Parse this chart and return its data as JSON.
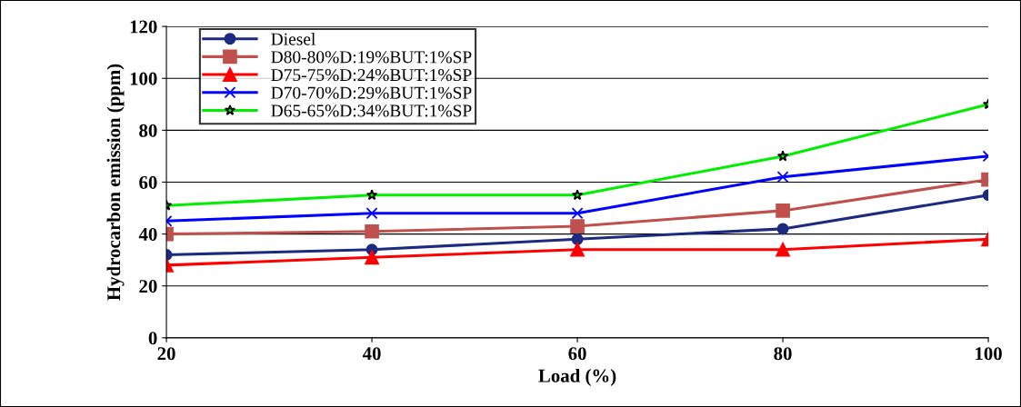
{
  "chart_data": {
    "type": "line",
    "xlabel": "Load (%)",
    "ylabel": "Hydrocarbon emission (ppm)",
    "x": [
      20,
      40,
      60,
      80,
      100
    ],
    "series": [
      {
        "name": "Diesel",
        "color": "#1c2a80",
        "marker": "circle",
        "values": [
          32,
          34,
          38,
          42,
          55
        ]
      },
      {
        "name": "D80-80%D:19%BUT:1%SP",
        "color": "#c0504d",
        "marker": "square",
        "values": [
          40,
          41,
          43,
          49,
          61
        ]
      },
      {
        "name": "D75-75%D:24%BUT:1%SP",
        "color": "#ff0000",
        "marker": "triangle",
        "values": [
          28,
          31,
          34,
          34,
          38
        ]
      },
      {
        "name": "D70-70%D:29%BUT:1%SP",
        "color": "#0000ff",
        "marker": "cross",
        "values": [
          45,
          48,
          48,
          62,
          70
        ]
      },
      {
        "name": "D65-65%D:34%BUT:1%SP",
        "color": "#00ee00",
        "marker": "star",
        "values": [
          51,
          55,
          55,
          70,
          90
        ]
      }
    ],
    "xlim": [
      20,
      100
    ],
    "xticks": [
      20,
      40,
      60,
      80,
      100
    ],
    "ylim": [
      0,
      120
    ],
    "yticks": [
      0,
      20,
      40,
      60,
      80,
      100,
      120
    ],
    "grid": "y",
    "legend": "top left"
  }
}
